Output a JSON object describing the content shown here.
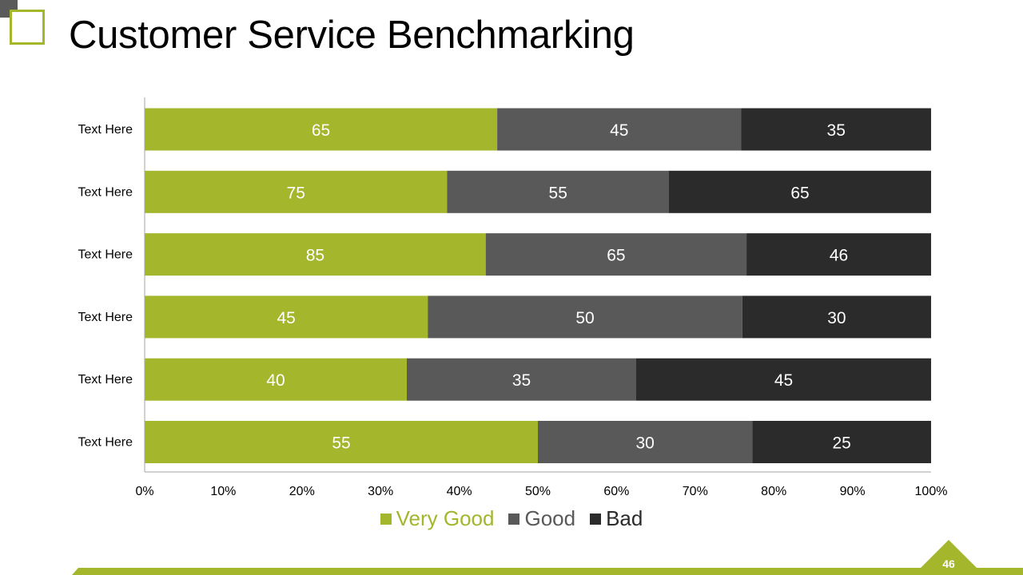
{
  "slide": {
    "title": "Customer Service Benchmarking",
    "page_number": "46",
    "accent_color": "#a3b62c"
  },
  "chart_data": {
    "type": "bar",
    "orientation": "horizontal",
    "stacking": "percent",
    "title": "",
    "xlabel": "",
    "ylabel": "",
    "xlim": [
      0,
      100
    ],
    "categories": [
      "Text Here",
      "Text Here",
      "Text Here",
      "Text Here",
      "Text Here",
      "Text Here"
    ],
    "series": [
      {
        "name": "Very Good",
        "color": "#a3b62c",
        "values": [
          65,
          75,
          85,
          45,
          40,
          55
        ]
      },
      {
        "name": "Good",
        "color": "#595959",
        "values": [
          45,
          55,
          65,
          50,
          35,
          30
        ]
      },
      {
        "name": "Bad",
        "color": "#2b2b2b",
        "values": [
          35,
          65,
          46,
          30,
          45,
          25
        ]
      }
    ],
    "x_ticks": [
      "0%",
      "10%",
      "20%",
      "30%",
      "40%",
      "50%",
      "60%",
      "70%",
      "80%",
      "90%",
      "100%"
    ],
    "legend_position": "bottom",
    "grid": false
  }
}
